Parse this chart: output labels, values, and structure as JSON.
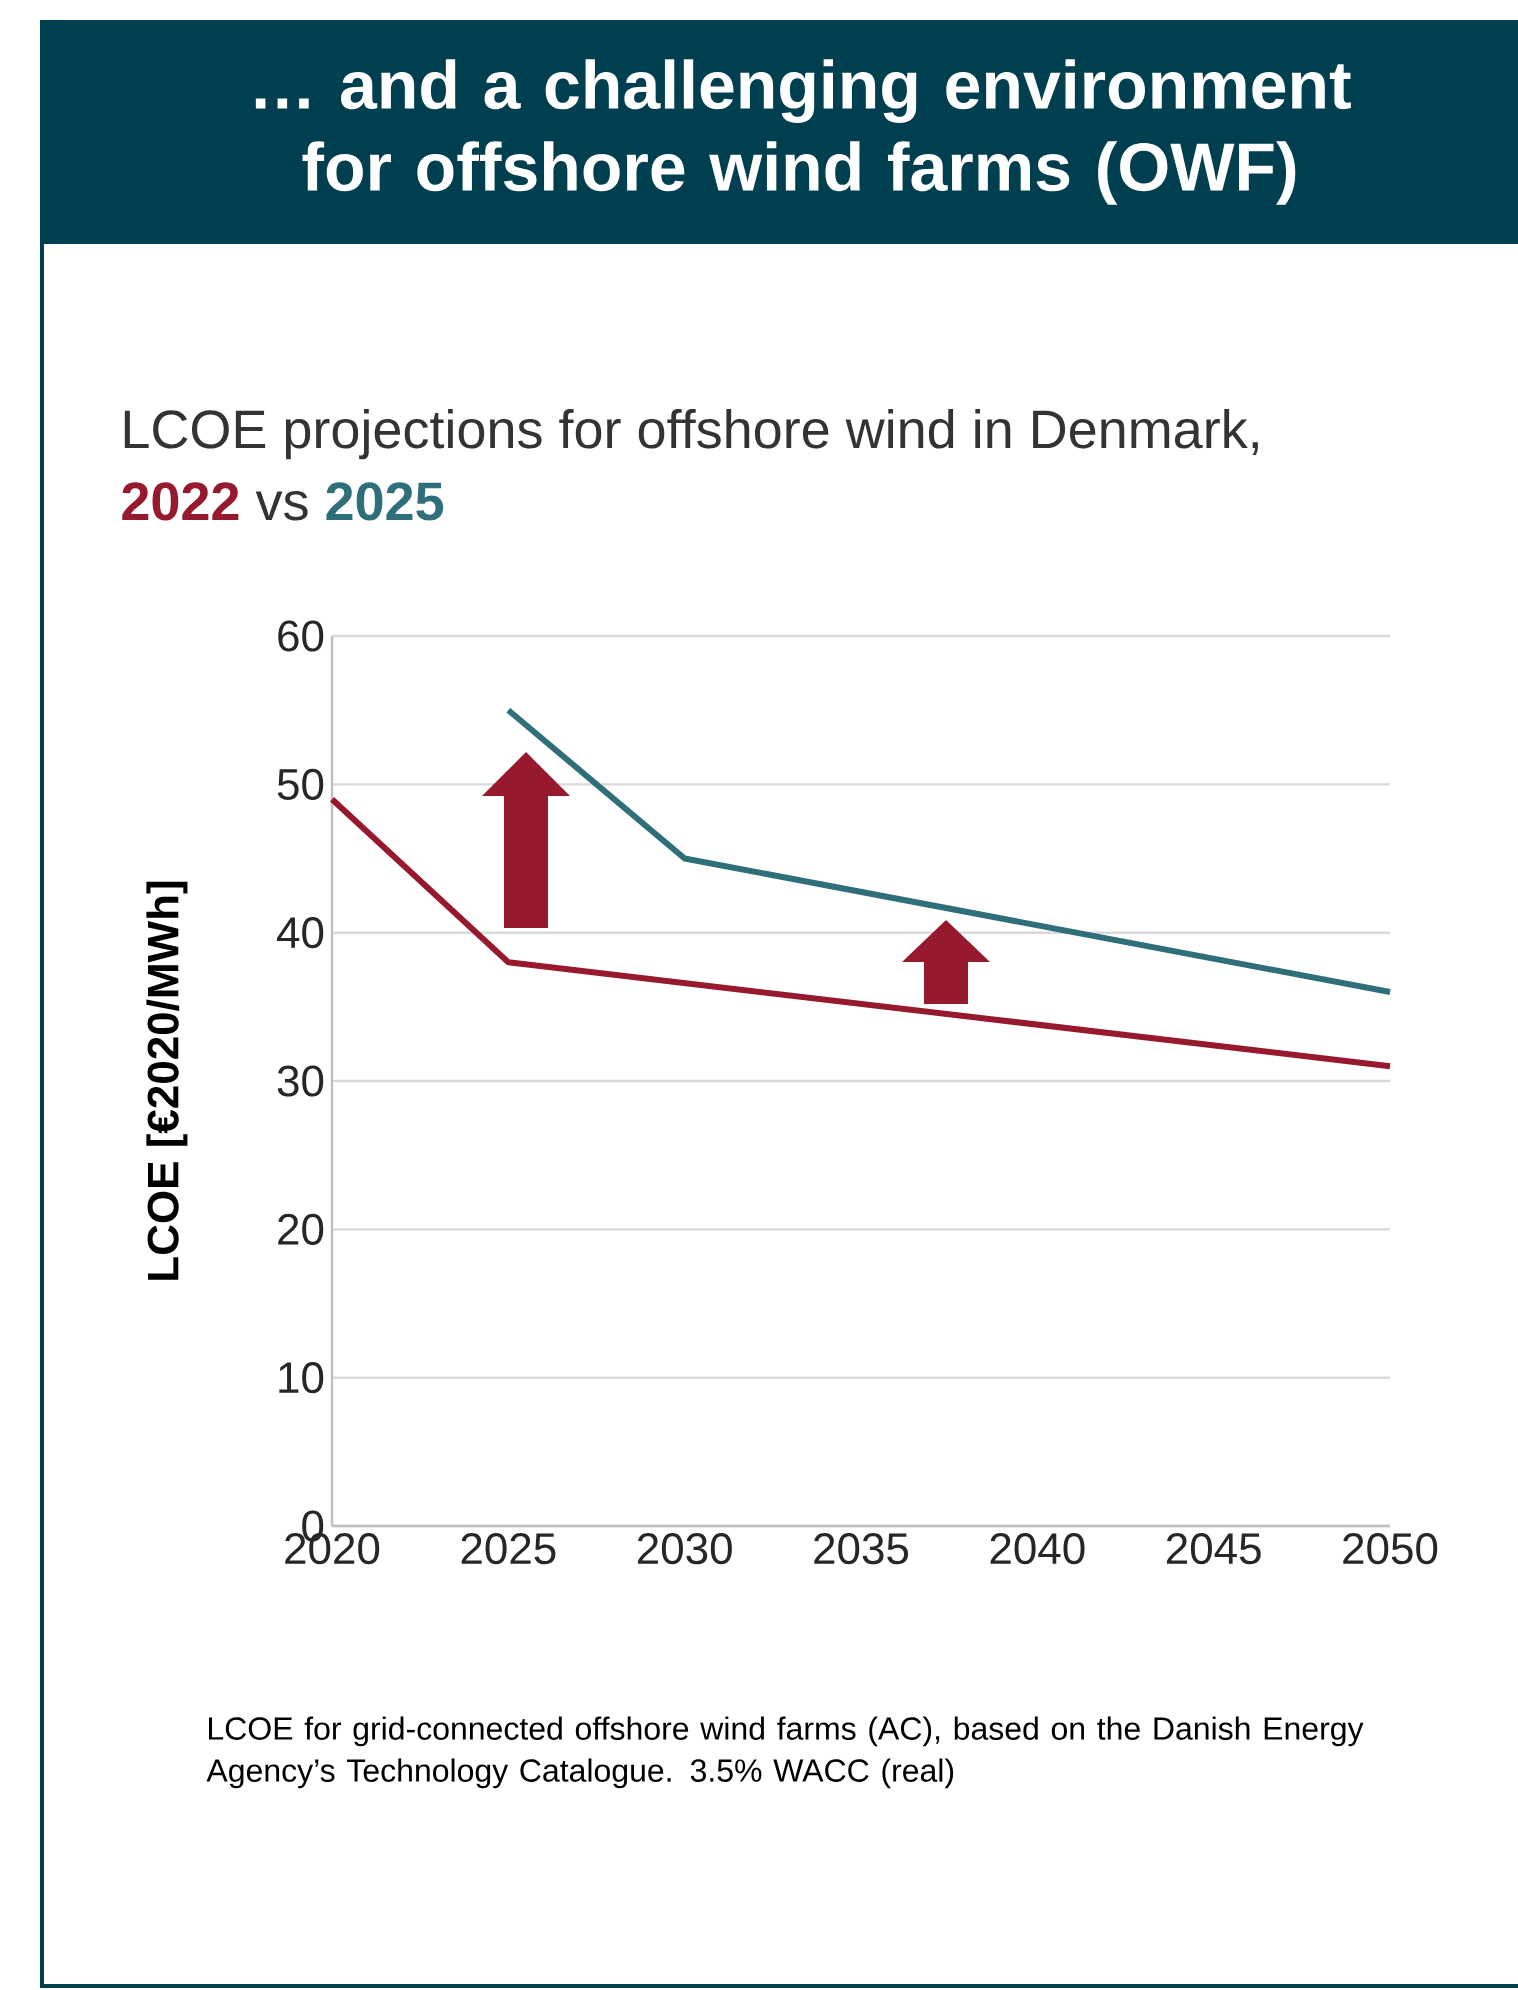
{
  "chart_data": {
    "type": "line",
    "title": "… and a challenging environment for offshore wind farms (OWF)",
    "subtitle": "LCOE projections for offshore wind in Denmark,",
    "ylabel": "LCOE [€2020/MWh]",
    "annotations": [
      "vs",
      "LCOE for grid-connected offshore wind farms (AC), based on the Danish Energy Agency’s Technology Catalogue. 3.5% WACC (real)"
    ],
    "series": [
      {
        "name": "2022",
        "color": "#96192e",
        "x": [
          2020,
          2025,
          2050
        ],
        "values": [
          49,
          38,
          31
        ]
      },
      {
        "name": "2025",
        "color": "#2f6f7a",
        "x": [
          2025,
          2030,
          2050
        ],
        "values": [
          55,
          45,
          36
        ]
      }
    ],
    "xlim": [
      2020,
      2050
    ],
    "xticks": [
      2020,
      2025,
      2030,
      2035,
      2040,
      2045,
      2050
    ],
    "ylim": [
      0,
      60
    ],
    "yticks": [
      0,
      10,
      20,
      30,
      40,
      50,
      60
    ],
    "grid": "y",
    "legend": false
  }
}
